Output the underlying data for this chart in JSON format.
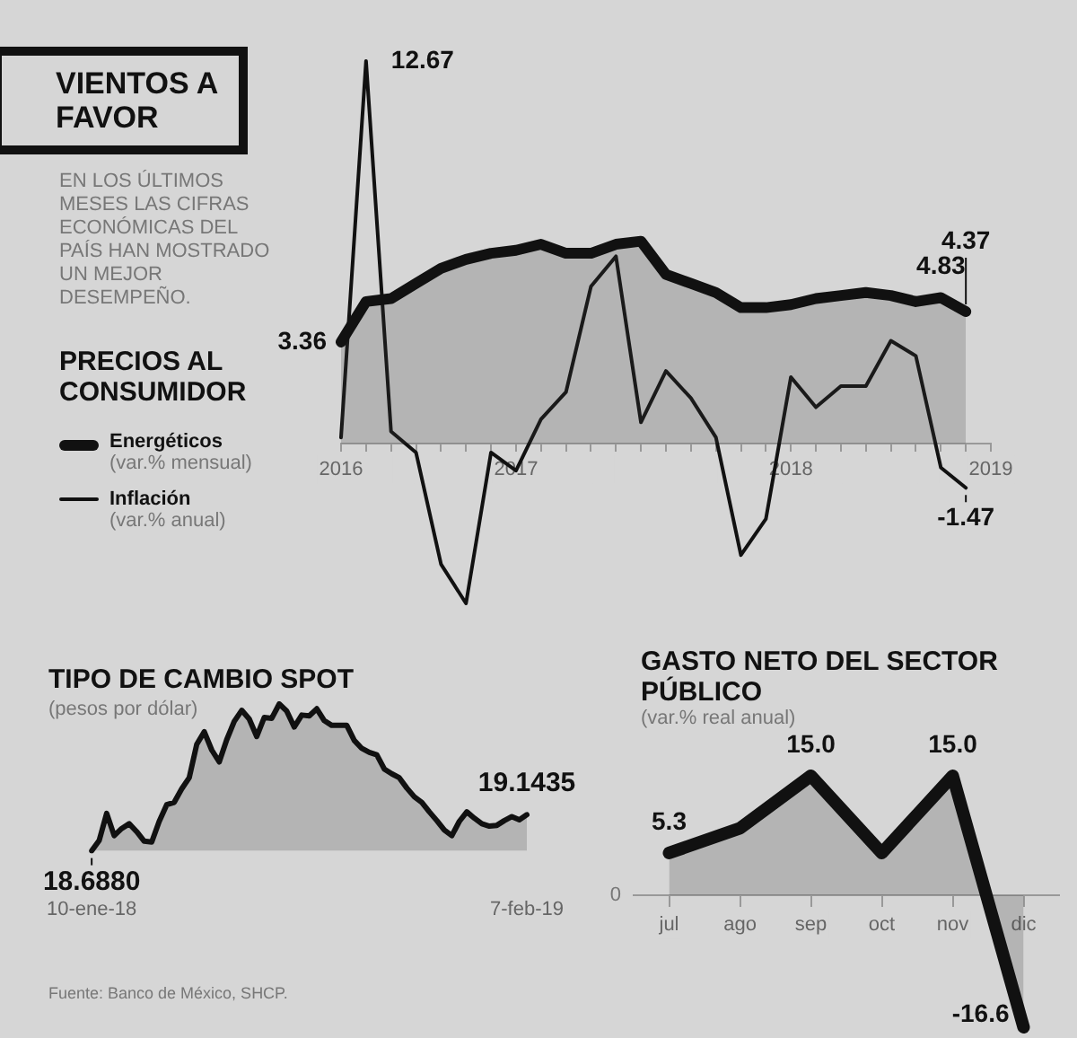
{
  "chart_data": [
    {
      "type": "other",
      "title": "VIENTOS A FAVOR",
      "subtitle": "EN LOS ÚLTIMOS MESES LAS CIFRAS ECONÓMICAS DEL PAÍS HAN MOSTRADO UN MEJOR DESEMPEÑO."
    },
    {
      "type": "area",
      "title": "PRECIOS AL CONSUMIDOR",
      "categories": [
        "2016",
        null,
        null,
        null,
        null,
        null,
        null,
        "2017",
        null,
        null,
        null,
        null,
        null,
        null,
        null,
        null,
        null,
        null,
        "2018",
        null,
        null,
        null,
        null,
        null,
        null,
        null,
        "2019"
      ],
      "tick_labels": "x",
      "legend": "left",
      "series": [
        {
          "name": "Energéticos (var.% mensual)",
          "color": "#111111",
          "values": [
            3.36,
            4.7,
            4.8,
            5.3,
            5.8,
            6.1,
            6.3,
            6.4,
            6.6,
            6.3,
            6.3,
            6.6,
            6.7,
            5.6,
            5.3,
            5.0,
            4.5,
            4.5,
            4.6,
            4.8,
            4.9,
            5.0,
            4.9,
            4.7,
            4.83,
            4.37,
            null
          ],
          "value_labels": [
            "3.36",
            null,
            null,
            null,
            null,
            null,
            null,
            null,
            null,
            null,
            null,
            null,
            null,
            null,
            null,
            null,
            null,
            null,
            null,
            null,
            null,
            null,
            null,
            null,
            "4.83",
            "4.37",
            null
          ]
        },
        {
          "name": "Inflación (var.% anual)",
          "type": "line",
          "color": "#111111",
          "values": [
            0.2,
            12.67,
            0.4,
            -0.3,
            -4.0,
            -5.3,
            -0.3,
            -0.9,
            0.8,
            1.7,
            5.2,
            6.2,
            0.7,
            2.4,
            1.5,
            0.2,
            -3.7,
            -2.5,
            2.2,
            1.2,
            1.9,
            1.9,
            3.4,
            2.9,
            -0.8,
            -1.47,
            null
          ],
          "value_labels": [
            null,
            "12.67",
            null,
            null,
            null,
            null,
            null,
            null,
            null,
            null,
            null,
            null,
            null,
            null,
            null,
            null,
            null,
            null,
            null,
            null,
            null,
            null,
            null,
            null,
            null,
            "-1.47",
            null
          ]
        }
      ]
    },
    {
      "type": "area",
      "title": "TIPO DE CAMBIO SPOT",
      "subtitle": "(pesos por dólar)",
      "categories": [
        "10-ene-18",
        null,
        null,
        null,
        null,
        null,
        null,
        null,
        null,
        null,
        null,
        null,
        null,
        null,
        null,
        null,
        null,
        null,
        null,
        null,
        null,
        null,
        null,
        null,
        null,
        null,
        null,
        null,
        null,
        null,
        null,
        null,
        null,
        null,
        null,
        null,
        null,
        null,
        null,
        null,
        null,
        null,
        null,
        null,
        null,
        null,
        null,
        null,
        null,
        null,
        null,
        null,
        null,
        null,
        null,
        null,
        null,
        null,
        "7-feb-19"
      ],
      "tick_labels": "x",
      "annotations": [
        "Fuente: Banco de México, SHCP."
      ],
      "series": [
        {
          "color": "#111111",
          "values": [
            18.688,
            18.82,
            19.16,
            18.88,
            18.97,
            19.03,
            18.93,
            18.81,
            18.8,
            19.06,
            19.27,
            19.3,
            19.47,
            19.61,
            20.03,
            20.19,
            19.96,
            19.81,
            20.09,
            20.32,
            20.46,
            20.35,
            20.13,
            20.37,
            20.36,
            20.54,
            20.45,
            20.25,
            20.4,
            20.39,
            20.48,
            20.33,
            20.27,
            20.27,
            20.27,
            20.08,
            19.98,
            19.93,
            19.9,
            19.72,
            19.66,
            19.61,
            19.48,
            19.37,
            19.3,
            19.18,
            19.07,
            18.95,
            18.88,
            19.06,
            19.18,
            19.1,
            19.03,
            19.0,
            19.01,
            19.07,
            19.12,
            19.08,
            19.1435
          ],
          "value_labels": [
            "18.6880",
            null,
            null,
            null,
            null,
            null,
            null,
            null,
            null,
            null,
            null,
            null,
            null,
            null,
            null,
            null,
            null,
            null,
            null,
            null,
            null,
            null,
            null,
            null,
            null,
            null,
            null,
            null,
            null,
            null,
            null,
            null,
            null,
            null,
            null,
            null,
            null,
            null,
            null,
            null,
            null,
            null,
            null,
            null,
            null,
            null,
            null,
            null,
            null,
            null,
            null,
            null,
            null,
            null,
            null,
            null,
            null,
            null,
            "19.1435"
          ]
        }
      ]
    },
    {
      "type": "area",
      "title": "GASTO NETO DEL SECTOR PÚBLICO",
      "subtitle": "(var.% real anual)",
      "categories": [
        "jul",
        "ago",
        "sep",
        "oct",
        "nov",
        "dic"
      ],
      "tick_labels": "x",
      "annotations": [
        "0"
      ],
      "series": [
        {
          "color": "#111111",
          "values": [
            5.3,
            8.4,
            15.0,
            5.3,
            15.0,
            -16.6
          ],
          "value_labels": [
            "5.3",
            null,
            "15.0",
            null,
            "15.0",
            "-16.6"
          ]
        }
      ]
    }
  ]
}
